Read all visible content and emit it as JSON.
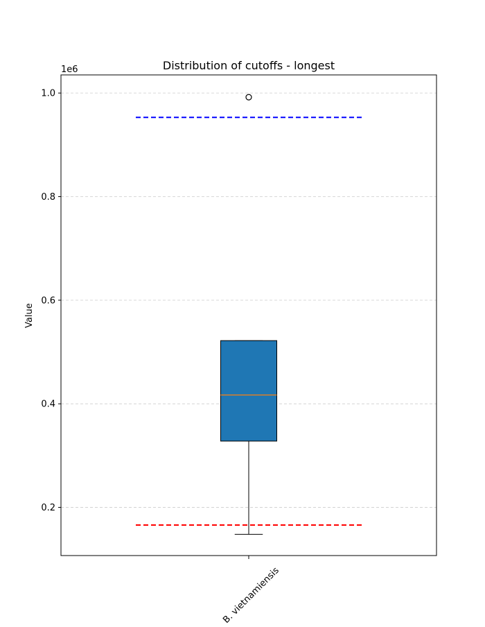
{
  "chart_data": {
    "type": "box",
    "title": "Distribution of cutoffs - longest",
    "xlabel": "",
    "ylabel": "Value",
    "y_offset_label": "1e6",
    "categories": [
      "B. vietnamiensis"
    ],
    "ylim": [
      107000,
      1035000
    ],
    "yticks": [
      200000,
      400000,
      600000,
      800000,
      1000000
    ],
    "ytick_labels": [
      "0.2",
      "0.4",
      "0.6",
      "0.8",
      "1.0"
    ],
    "grid": "horizontal dashed",
    "boxes": [
      {
        "category": "B. vietnamiensis",
        "whisker_low": 148000,
        "q1": 328000,
        "median": 417000,
        "q3": 522000,
        "whisker_high": 522000,
        "outliers": [
          992000
        ]
      }
    ],
    "reference_lines": [
      {
        "y": 953000,
        "color": "#0000ff",
        "style": "dashed"
      },
      {
        "y": 166000,
        "color": "#ff0000",
        "style": "dashed"
      }
    ],
    "colors": {
      "box_fill": "#1f77b4",
      "median": "#ff7f0e",
      "grid": "#cccccc"
    }
  }
}
